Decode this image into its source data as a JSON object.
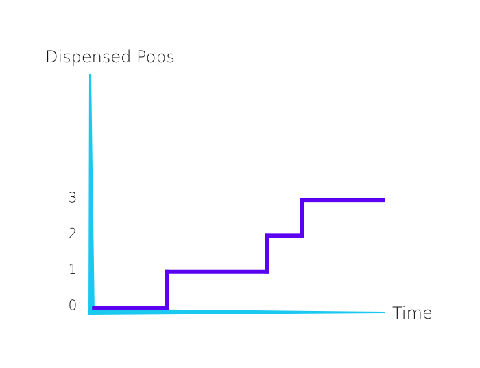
{
  "chart_data": {
    "type": "step",
    "y_label": "Dispensed Pops",
    "x_label": "Time",
    "x": [
      1,
      26,
      60,
      72
    ],
    "xlim": [
      0,
      100
    ],
    "series": [
      {
        "color": "#5b00f0",
        "values": [
          0,
          1,
          2,
          3
        ]
      }
    ],
    "ylim": [
      0,
      6.5
    ],
    "yticks": [
      0,
      1,
      2,
      3
    ],
    "axis_color": "#1ac8f0"
  }
}
